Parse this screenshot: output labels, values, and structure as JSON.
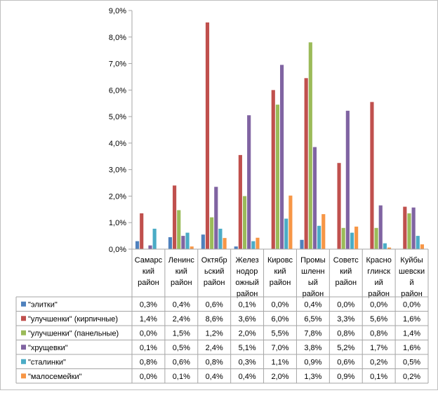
{
  "chart_data": {
    "type": "bar",
    "title": "",
    "xlabel": "",
    "ylabel": "",
    "ylim": [
      0,
      9
    ],
    "y_ticks": [
      "0,0%",
      "1,0%",
      "2,0%",
      "3,0%",
      "4,0%",
      "5,0%",
      "6,0%",
      "7,0%",
      "8,0%",
      "9,0%"
    ],
    "grid": false,
    "legend": "data-table-left",
    "categories": [
      [
        "Самарс",
        "кий",
        "район"
      ],
      [
        "Ленинс",
        "кий",
        "район"
      ],
      [
        "Октябр",
        "ьский",
        "район"
      ],
      [
        "Желез",
        "нодор",
        "ожный",
        "район"
      ],
      [
        "Кировс",
        "кий",
        "район"
      ],
      [
        "Промы",
        "шленн",
        "ый",
        "район"
      ],
      [
        "Советс",
        "кий",
        "район"
      ],
      [
        "Красно",
        "глинск",
        "ий",
        "район"
      ],
      [
        "Куйбы",
        "шевски",
        "й",
        "район"
      ]
    ],
    "series": [
      {
        "name": "\"элитки\"",
        "color": "#4f81bd",
        "values": [
          0.3,
          0.45,
          0.55,
          0.1,
          0.0,
          0.35,
          0.0,
          0.0,
          0.0
        ],
        "labels": [
          "0,3%",
          "0,4%",
          "0,6%",
          "0,1%",
          "0,0%",
          "0,4%",
          "0,0%",
          "0,0%",
          "0,0%"
        ]
      },
      {
        "name": "\"улучшенки\"  (кирпичные)",
        "color": "#c0504d",
        "values": [
          1.35,
          2.4,
          8.55,
          3.55,
          6.0,
          6.45,
          3.25,
          5.55,
          1.6
        ],
        "labels": [
          "1,4%",
          "2,4%",
          "8,6%",
          "3,6%",
          "6,0%",
          "6,5%",
          "3,3%",
          "5,6%",
          "1,6%"
        ]
      },
      {
        "name": "\"улучшенки\"  (панельные)",
        "color": "#9bbb59",
        "values": [
          0.0,
          1.47,
          1.2,
          2.0,
          5.45,
          7.8,
          0.8,
          0.8,
          1.35
        ],
        "labels": [
          "0,0%",
          "1,5%",
          "1,2%",
          "2,0%",
          "5,5%",
          "7,8%",
          "0,8%",
          "0,8%",
          "1,4%"
        ]
      },
      {
        "name": "\"хрущевки\"",
        "color": "#8064a2",
        "values": [
          0.14,
          0.5,
          2.35,
          5.05,
          6.95,
          3.85,
          5.22,
          1.65,
          1.57
        ],
        "labels": [
          "0,1%",
          "0,5%",
          "2,4%",
          "5,1%",
          "7,0%",
          "3,8%",
          "5,2%",
          "1,7%",
          "1,6%"
        ]
      },
      {
        "name": "\"сталинки\"",
        "color": "#4bacc6",
        "values": [
          0.77,
          0.62,
          0.77,
          0.3,
          1.15,
          0.88,
          0.62,
          0.22,
          0.5
        ],
        "labels": [
          "0,8%",
          "0,6%",
          "0,8%",
          "0,3%",
          "1,1%",
          "0,9%",
          "0,6%",
          "0,2%",
          "0,5%"
        ]
      },
      {
        "name": "\"малосемейки\"",
        "color": "#f79646",
        "values": [
          0.0,
          0.1,
          0.42,
          0.43,
          2.02,
          1.32,
          0.85,
          0.06,
          0.18
        ],
        "labels": [
          "0,0%",
          "0,1%",
          "0,4%",
          "0,4%",
          "2,0%",
          "1,3%",
          "0,9%",
          "0,1%",
          "0,2%"
        ]
      }
    ]
  }
}
